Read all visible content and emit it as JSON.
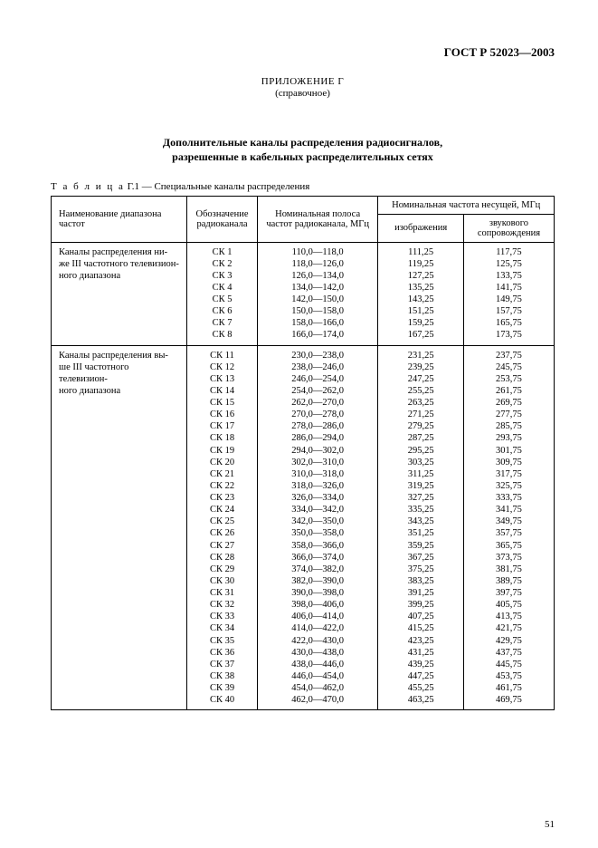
{
  "doc_id": "ГОСТ Р 52023—2003",
  "appendix_label": "ПРИЛОЖЕНИЕ Г",
  "appendix_note": "(справочное)",
  "title_line1": "Дополнительные каналы распределения радиосигналов,",
  "title_line2": "разрешенные в кабельных распределительных сетях",
  "table_caption_prefix": "Т а б л и ц а",
  "table_caption_rest": "  Г.1 — Специальные каналы распределения",
  "headers": {
    "name": "Наименование диапазона частот",
    "designation": "Обозначение радиоканала",
    "band": "Номинальная полоса частот радиоканала, МГц",
    "carrier": "Номинальная частота несущей, МГц",
    "image": "изображения",
    "sound": "звукового сопровождения"
  },
  "groups": [
    {
      "name": "  Каналы распределения ни-\nже III частотного телевизион-\nного диапазона",
      "rows": [
        {
          "d": "СК 1",
          "b": "110,0—118,0",
          "i": "111,25",
          "s": "117,75"
        },
        {
          "d": "СК 2",
          "b": "118,0—126,0",
          "i": "119,25",
          "s": "125,75"
        },
        {
          "d": "СК 3",
          "b": "126,0—134,0",
          "i": "127,25",
          "s": "133,75"
        },
        {
          "d": "СК 4",
          "b": "134,0—142,0",
          "i": "135,25",
          "s": "141,75"
        },
        {
          "d": "СК 5",
          "b": "142,0—150,0",
          "i": "143,25",
          "s": "149,75"
        },
        {
          "d": "СК 6",
          "b": "150,0—158,0",
          "i": "151,25",
          "s": "157,75"
        },
        {
          "d": "СК 7",
          "b": "158,0—166,0",
          "i": "159,25",
          "s": "165,75"
        },
        {
          "d": "СК 8",
          "b": "166,0—174,0",
          "i": "167,25",
          "s": "173,75"
        }
      ]
    },
    {
      "name": "  Каналы распределения вы-\nше III частотного телевизион-\nного диапазона",
      "rows": [
        {
          "d": "СК 11",
          "b": "230,0—238,0",
          "i": "231,25",
          "s": "237,75"
        },
        {
          "d": "СК 12",
          "b": "238,0—246,0",
          "i": "239,25",
          "s": "245,75"
        },
        {
          "d": "СК 13",
          "b": "246,0—254,0",
          "i": "247,25",
          "s": "253,75"
        },
        {
          "d": "СК 14",
          "b": "254,0—262,0",
          "i": "255,25",
          "s": "261,75"
        },
        {
          "d": "СК 15",
          "b": "262,0—270,0",
          "i": "263,25",
          "s": "269,75"
        },
        {
          "d": "СК 16",
          "b": "270,0—278,0",
          "i": "271,25",
          "s": "277,75"
        },
        {
          "d": "СК 17",
          "b": "278,0—286,0",
          "i": "279,25",
          "s": "285,75"
        },
        {
          "d": "СК 18",
          "b": "286,0—294,0",
          "i": "287,25",
          "s": "293,75"
        },
        {
          "d": "СК 19",
          "b": "294,0—302,0",
          "i": "295,25",
          "s": "301,75"
        },
        {
          "d": "СК 20",
          "b": "302,0—310,0",
          "i": "303,25",
          "s": "309,75"
        },
        {
          "d": "СК 21",
          "b": "310,0—318,0",
          "i": "311,25",
          "s": "317,75"
        },
        {
          "d": "СК 22",
          "b": "318,0—326,0",
          "i": "319,25",
          "s": "325,75"
        },
        {
          "d": "СК 23",
          "b": "326,0—334,0",
          "i": "327,25",
          "s": "333,75"
        },
        {
          "d": "СК 24",
          "b": "334,0—342,0",
          "i": "335,25",
          "s": "341,75"
        },
        {
          "d": "СК 25",
          "b": "342,0—350,0",
          "i": "343,25",
          "s": "349,75"
        },
        {
          "d": "СК 26",
          "b": "350,0—358,0",
          "i": "351,25",
          "s": "357,75"
        },
        {
          "d": "СК 27",
          "b": "358,0—366,0",
          "i": "359,25",
          "s": "365,75"
        },
        {
          "d": "СК 28",
          "b": "366,0—374,0",
          "i": "367,25",
          "s": "373,75"
        },
        {
          "d": "СК 29",
          "b": "374,0—382,0",
          "i": "375,25",
          "s": "381,75"
        },
        {
          "d": "СК 30",
          "b": "382,0—390,0",
          "i": "383,25",
          "s": "389,75"
        },
        {
          "d": "СК 31",
          "b": "390,0—398,0",
          "i": "391,25",
          "s": "397,75"
        },
        {
          "d": "СК 32",
          "b": "398,0—406,0",
          "i": "399,25",
          "s": "405,75"
        },
        {
          "d": "СК 33",
          "b": "406,0—414,0",
          "i": "407,25",
          "s": "413,75"
        },
        {
          "d": "СК 34",
          "b": "414,0—422,0",
          "i": "415,25",
          "s": "421,75"
        },
        {
          "d": "СК 35",
          "b": "422,0—430,0",
          "i": "423,25",
          "s": "429,75"
        },
        {
          "d": "СК 36",
          "b": "430,0—438,0",
          "i": "431,25",
          "s": "437,75"
        },
        {
          "d": "СК 37",
          "b": "438,0—446,0",
          "i": "439,25",
          "s": "445,75"
        },
        {
          "d": "СК 38",
          "b": "446,0—454,0",
          "i": "447,25",
          "s": "453,75"
        },
        {
          "d": "СК 39",
          "b": "454,0—462,0",
          "i": "455,25",
          "s": "461,75"
        },
        {
          "d": "СК 40",
          "b": "462,0—470,0",
          "i": "463,25",
          "s": "469,75"
        }
      ]
    }
  ],
  "page_number": "51"
}
